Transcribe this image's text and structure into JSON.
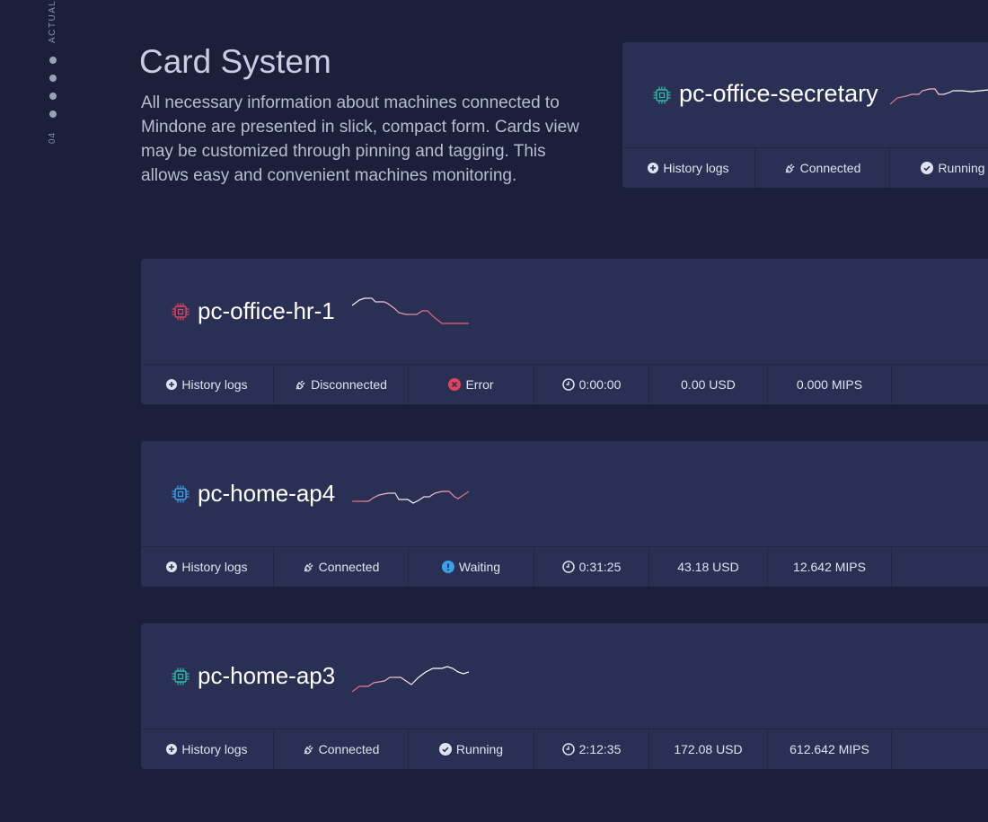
{
  "sidebar": {
    "section_label": "ACTUAL",
    "section_number": "04"
  },
  "header": {
    "title": "Card System",
    "description": "All necessary information about machines connected to Mindone are presented in slick, compact form. Cards view may be customized through pinning and tagging. This allows easy and convenient machines monitoring."
  },
  "colors": {
    "background": "#1b1f3a",
    "card": "#2a3054",
    "running": "#2fb9a8",
    "error": "#e0435c",
    "waiting": "#3aa0e8",
    "spark_low": "#e0607a",
    "spark_high": "#ffffff"
  },
  "featured": {
    "name": "pc-office-secretary",
    "chip_icon": "cpu-chip-icon",
    "history_label": "History logs",
    "connection": "Connected",
    "status": "Running"
  },
  "machines": [
    {
      "name": "pc-office-hr-1",
      "chip_icon": "cpu-chip-icon",
      "history_label": "History logs",
      "connection": "Disconnected",
      "status": "Error",
      "status_icon": "error-x-icon",
      "time": "0:00:00",
      "cost": "0.00 USD",
      "mips": "0.000 MIPS"
    },
    {
      "name": "pc-home-ap4",
      "chip_icon": "cpu-chip-icon",
      "history_label": "History logs",
      "connection": "Connected",
      "status": "Waiting",
      "status_icon": "waiting-exclamation-icon",
      "time": "0:31:25",
      "cost": "43.18 USD",
      "mips": "12.642 MIPS"
    },
    {
      "name": "pc-home-ap3",
      "chip_icon": "cpu-chip-icon",
      "history_label": "History logs",
      "connection": "Connected",
      "status": "Running",
      "status_icon": "running-check-icon",
      "time": "2:12:35",
      "cost": "172.08 USD",
      "mips": "612.642 MIPS"
    }
  ]
}
